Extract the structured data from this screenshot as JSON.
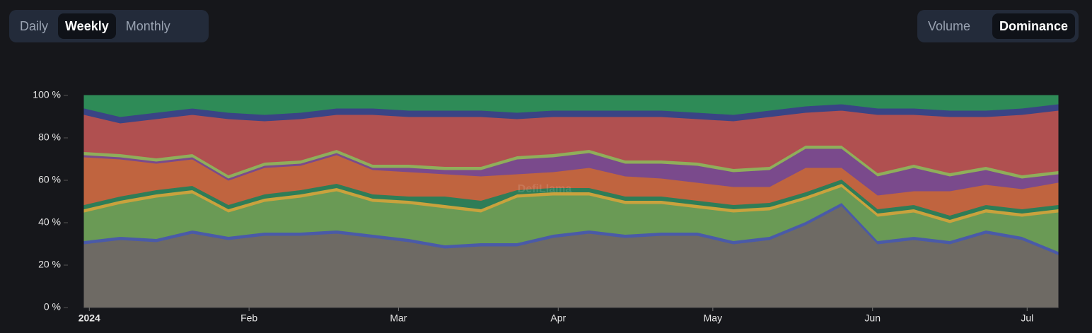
{
  "controls": {
    "period": [
      {
        "label": "Daily",
        "active": false
      },
      {
        "label": "Weekly",
        "active": true
      },
      {
        "label": "Monthly",
        "active": false
      }
    ],
    "mode": [
      {
        "label": "Volume",
        "active": false
      },
      {
        "label": "Dominance",
        "active": true
      }
    ]
  },
  "chart_data": {
    "type": "stacked-area",
    "watermark": "DefiLlama",
    "x": [
      -1,
      6,
      13,
      20,
      27,
      34,
      41,
      48,
      55,
      62,
      69,
      76,
      83,
      90,
      97,
      104,
      111,
      118,
      125,
      132,
      139,
      146,
      153,
      160,
      167,
      174,
      181,
      188
    ],
    "xlim": [
      -1,
      188
    ],
    "xticks": [
      {
        "value": 0,
        "label": "2024"
      },
      {
        "value": 31,
        "label": "Feb"
      },
      {
        "value": 60,
        "label": "Mar"
      },
      {
        "value": 91,
        "label": "Apr"
      },
      {
        "value": 121,
        "label": "May"
      },
      {
        "value": 152,
        "label": "Jun"
      },
      {
        "value": 182,
        "label": "Jul"
      }
    ],
    "ylim": [
      0,
      100
    ],
    "yticks": [
      {
        "value": 0,
        "label": "0 %"
      },
      {
        "value": 20,
        "label": "20 %"
      },
      {
        "value": 40,
        "label": "40 %"
      },
      {
        "value": 60,
        "label": "60 %"
      },
      {
        "value": 80,
        "label": "80 %"
      },
      {
        "value": 100,
        "label": "100 %"
      }
    ],
    "grid": false,
    "series": [
      {
        "color": "#6e6a64",
        "values": [
          30,
          32,
          31,
          35,
          32,
          34,
          34,
          35,
          33,
          31,
          28,
          29,
          29,
          33,
          35,
          33,
          34,
          34,
          30,
          32,
          39,
          48,
          30,
          32,
          30,
          35,
          32,
          25
        ]
      },
      {
        "color": "#4a5aa8",
        "values": [
          1.5,
          1.5,
          1.5,
          1.5,
          1.5,
          1.5,
          1.5,
          1.5,
          1.5,
          1.5,
          1.5,
          1.5,
          1.5,
          1.5,
          1.5,
          1.5,
          1.5,
          1.5,
          1.5,
          1.5,
          1.5,
          1.5,
          1.5,
          1.5,
          1.5,
          1.5,
          1.5,
          1.5
        ]
      },
      {
        "color": "#6a9a55",
        "values": [
          13.5,
          15.5,
          19.5,
          17.5,
          11.5,
          14.5,
          16.5,
          18.5,
          15.5,
          16.5,
          17.5,
          14.5,
          21.5,
          18.5,
          16.5,
          14.5,
          13.5,
          11.5,
          13.5,
          12.5,
          10.5,
          7.5,
          11.5,
          11.5,
          8.5,
          8.5,
          9.5,
          18.5
        ]
      },
      {
        "color": "#c9a23d",
        "values": [
          1.5,
          1.5,
          1.5,
          1.5,
          1.5,
          1.5,
          1.5,
          1.5,
          1.5,
          1.5,
          1.5,
          1.5,
          1.5,
          1.5,
          1.5,
          1.5,
          1.5,
          1.5,
          1.5,
          1.5,
          1.5,
          1.5,
          1.5,
          1.5,
          1.5,
          1.5,
          1.5,
          1.5
        ]
      },
      {
        "color": "#2e7d57",
        "values": [
          2,
          2,
          2,
          2,
          2,
          2,
          2,
          2,
          2,
          2,
          4,
          4,
          2,
          2,
          2,
          2,
          2,
          2,
          2,
          2,
          2,
          2,
          2,
          2,
          2,
          2,
          2,
          2
        ]
      },
      {
        "color": "#c0643f",
        "values": [
          22.5,
          17.5,
          12.5,
          12.5,
          11.5,
          12.5,
          11.5,
          13.5,
          11.5,
          11.5,
          10.5,
          11.5,
          7.5,
          7.5,
          9.5,
          9.5,
          8.5,
          8.5,
          8.5,
          7.5,
          11.5,
          5.5,
          6.5,
          6.5,
          11.5,
          9.5,
          9.5,
          10.5
        ]
      },
      {
        "color": "#7a4a8c",
        "values": [
          1,
          1,
          1,
          1,
          1,
          1,
          1,
          1,
          1,
          2,
          2,
          3,
          7,
          7,
          7,
          6,
          7,
          8,
          7,
          8,
          9,
          9,
          9,
          11,
          7,
          7,
          5,
          4
        ]
      },
      {
        "color": "#8fae5a",
        "values": [
          1.5,
          1.5,
          1.5,
          1.5,
          1.5,
          1.5,
          1.5,
          1.5,
          1.5,
          1.5,
          1.5,
          1.5,
          1.5,
          1.5,
          1.5,
          1.5,
          1.5,
          1.5,
          1.5,
          1.5,
          1.5,
          1.5,
          1.5,
          1.5,
          1.5,
          1.5,
          1.5,
          1.5
        ]
      },
      {
        "color": "#b05050",
        "values": [
          17.5,
          14.5,
          18.5,
          18.5,
          26.5,
          19.5,
          19.5,
          16.5,
          23.5,
          22.5,
          23.5,
          23.5,
          17.5,
          17.5,
          15.5,
          20.5,
          20.5,
          20.5,
          22.5,
          23.5,
          15.5,
          16.5,
          27.5,
          23.5,
          26.5,
          23.5,
          28.5,
          28.5
        ]
      },
      {
        "color": "#3a4485",
        "values": [
          3,
          3,
          3,
          3,
          3,
          3,
          3,
          3,
          3,
          3,
          3,
          3,
          3,
          3,
          3,
          3,
          3,
          3,
          3,
          3,
          3,
          3,
          3,
          3,
          3,
          3,
          3,
          3
        ]
      },
      {
        "color": "#2e8b57",
        "values": [
          6,
          10,
          8,
          6,
          8,
          9,
          8,
          6,
          6,
          7,
          7,
          7,
          8,
          7,
          7,
          7,
          7,
          8,
          9,
          7,
          5,
          4,
          6,
          6,
          7,
          7,
          6,
          4
        ]
      }
    ]
  }
}
